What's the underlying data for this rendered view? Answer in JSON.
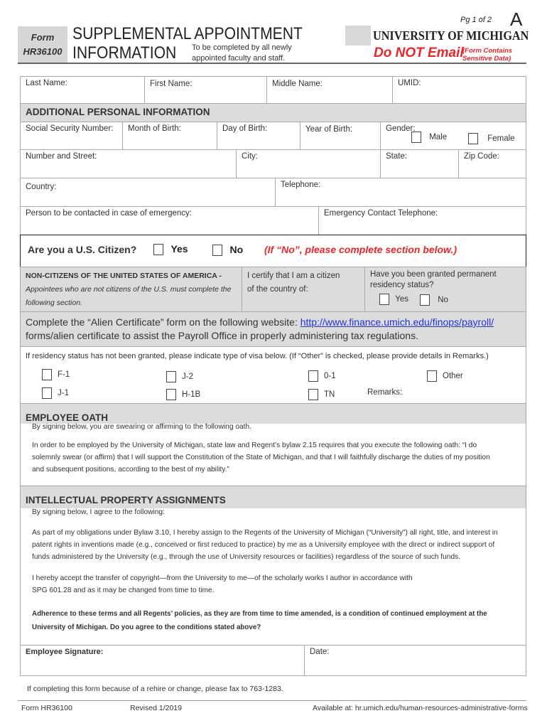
{
  "header": {
    "form_label": "Form",
    "form_number": "HR36100",
    "title_line1": "SUPPLEMENTAL APPOINTMENT",
    "title_line2": "INFORMATION",
    "subtitle": "To be completed by all newly appointed faculty and staff.",
    "page": "Pg 1 of 2",
    "page_letter": "A",
    "university": "UNIVERSITY OF MICHIGAN",
    "warning": "Do NOT Email",
    "warning_note": "(Form Contains Sensitive Data)",
    "accent": "#e8262b"
  },
  "name_row": {
    "last": "Last Name:",
    "first": "First Name:",
    "middle": "Middle Name:",
    "umid": "UMID:"
  },
  "personal": {
    "heading": "ADDITIONAL PERSONAL INFORMATION",
    "ssn": "Social Security Number:",
    "month": "Month of Birth:",
    "day": "Day of Birth:",
    "year": "Year of Birth:",
    "gender": "Gender:",
    "male": "Male",
    "female": "Female",
    "street": "Number and Street:",
    "city": "City:",
    "state": "State:",
    "zip": "Zip Code:",
    "country": "Country:",
    "telephone": "Telephone:",
    "emergency": "Person to be contacted in case of emergency:",
    "emergency_tel": "Emergency Contact Telephone:"
  },
  "citizen": {
    "question": "Are you a U.S. Citizen?",
    "yes": "Yes",
    "no": "No",
    "note": "(If “No”, please complete section below.)"
  },
  "noncitizen": {
    "heading": "NON-CITIZENS OF THE UNITED STATES OF AMERICA -",
    "italic": "Appointees who are not citizens of the U.S. must complete the following section.",
    "certify": "I certify that I am a citizen of the country of:",
    "residency": "Have you been granted permanent residency status?",
    "yes": "Yes",
    "no": "No"
  },
  "alien": {
    "text1": "Complete the “Alien Certificate” form on the following website:",
    "link": "http://www.finance.umich.edu/finops/payroll/",
    "text2": "forms/alien certificate to assist the Payroll Office in properly administering tax regulations."
  },
  "visa": {
    "instruction": "If residency status has not been granted, please indicate type of visa below.  (If “Other” is checked, please provide details in Remarks.)",
    "options": [
      "F-1",
      "J-2",
      "0-1",
      "Other",
      "J-1",
      "H-1B",
      "TN"
    ],
    "remarks": "Remarks:"
  },
  "oath": {
    "heading": "EMPLOYEE OATH",
    "intro": "By signing below, you are swearing or affirming to the following oath.",
    "text": "In order to be employed by the University of Michigan, state law and Regent’s bylaw 2.15 requires that you execute the following oath:  “I do solemnly swear (or affirm) that I will support the Constitution of the State of Michigan, and that I will faithfully discharge the duties of my position and subsequent positions, according to the best of my ability.”"
  },
  "ip": {
    "heading": "INTELLECTUAL PROPERTY ASSIGNMENTS",
    "intro": "By signing below, I agree to the following:",
    "p1": "As part of my obligations under Bylaw 3.10, I hereby assign to the Regents of the University of Michigan (“University”) all right, title, and interest in patent rights in inventions made (e.g., conceived or first reduced to practice) by me as a University employee with the direct or indirect support of funds administered by the University (e.g., through the use of University resources or facilities) regardless of the source of such funds.",
    "p2": "I hereby accept the transfer of copyright—from the University to me—of the scholarly works I author in accordance with SPG 601.28 and as it may be changed from time to time.",
    "p3": "Adherence to these terms and all Regents’ policies, as they are from time to time amended, is a condition of continued employment at the University of Michigan.  Do you agree to the conditions stated above?"
  },
  "signature": {
    "employee": "Employee Signature:",
    "date": "Date:"
  },
  "fax": "If completing this form because of a rehire or change, please fax to 763-1283.",
  "footer": {
    "form": "Form HR36100",
    "revised": "Revised 1/2019",
    "available": "Available at: hr.umich.edu/",
    "available_path": "human-resources-administrative-forms"
  }
}
